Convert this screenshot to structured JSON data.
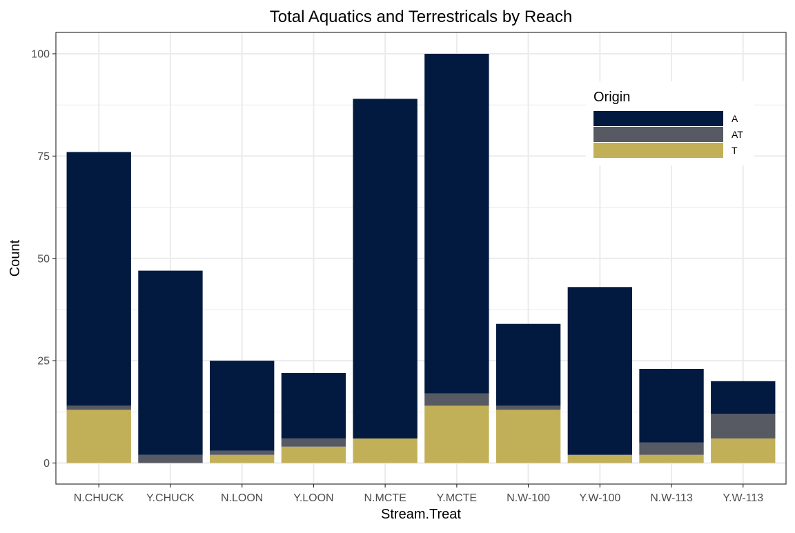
{
  "chart_data": {
    "type": "bar",
    "stacked": true,
    "title": "Total Aquatics and Terrestricals by Reach",
    "xlabel": "Stream.Treat",
    "ylabel": "Count",
    "ylim": [
      0,
      100
    ],
    "yticks": [
      0,
      25,
      50,
      75,
      100
    ],
    "categories": [
      "N.CHUCK",
      "Y.CHUCK",
      "N.LOON",
      "Y.LOON",
      "N.MCTE",
      "Y.MCTE",
      "N.W-100",
      "Y.W-100",
      "N.W-113",
      "Y.W-113"
    ],
    "series": [
      {
        "name": "T",
        "color": "#c2b059",
        "values": [
          13,
          0,
          2,
          4,
          6,
          14,
          13,
          2,
          2,
          6
        ]
      },
      {
        "name": "AT",
        "color": "#575a63",
        "values": [
          1,
          2,
          1,
          2,
          0,
          3,
          1,
          0,
          3,
          6
        ]
      },
      {
        "name": "A",
        "color": "#031a40",
        "values": [
          62,
          45,
          22,
          16,
          83,
          83,
          20,
          41,
          18,
          8
        ]
      }
    ],
    "legend": {
      "title": "Origin",
      "position": "top-right",
      "entries": [
        "A",
        "AT",
        "T"
      ]
    }
  }
}
